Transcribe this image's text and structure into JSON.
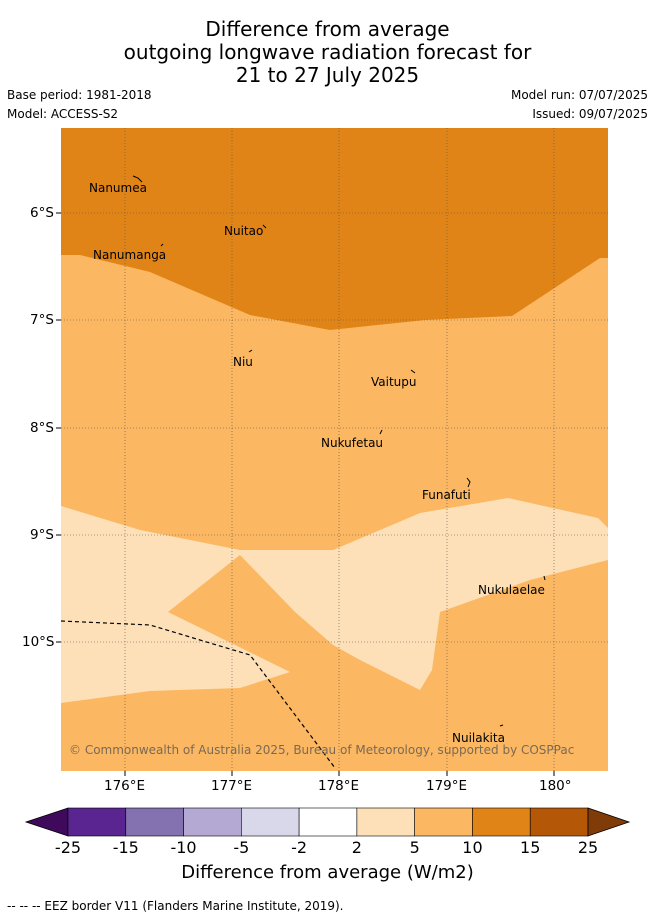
{
  "title": {
    "line1": "Difference from average",
    "line2": "outgoing longwave radiation forecast for",
    "line3": "21 to 27 July 2025"
  },
  "meta": {
    "base_period": "Base period: 1981-2018",
    "model": "Model: ACCESS-S2",
    "model_run": "Model run: 07/07/2025",
    "issued": "Issued: 09/07/2025"
  },
  "map": {
    "lon_ticks": [
      "176°E",
      "177°E",
      "178°E",
      "179°E",
      "180°"
    ],
    "lat_ticks": [
      "6°S",
      "7°S",
      "8°S",
      "9°S",
      "10°S"
    ],
    "places": [
      {
        "name": "Nanumea"
      },
      {
        "name": "Nuitao"
      },
      {
        "name": "Nanumanga"
      },
      {
        "name": "Niu"
      },
      {
        "name": "Vaitupu"
      },
      {
        "name": "Nukufetau"
      },
      {
        "name": "Funafuti"
      },
      {
        "name": "Nukulaelae"
      },
      {
        "name": "Nuilakita"
      }
    ],
    "copyright": "© Commonwealth of Australia 2025, Bureau of Meteorology, supported by COSPPac"
  },
  "colorbar": {
    "labels": [
      "-25",
      "-15",
      "-10",
      "-5",
      "-2",
      "2",
      "5",
      "10",
      "15",
      "25"
    ],
    "colors": [
      "#3f0a5c",
      "#5a2590",
      "#8371b0",
      "#b3a9d3",
      "#d9d8ea",
      "#ffffff",
      "#fde0b7",
      "#fbb762",
      "#e18417",
      "#b45808",
      "#7f3b08"
    ],
    "title": "Difference from average (W/m2)"
  },
  "footer": "-- -- -- EEZ border V11 (Flanders Marine Institute, 2019)."
}
